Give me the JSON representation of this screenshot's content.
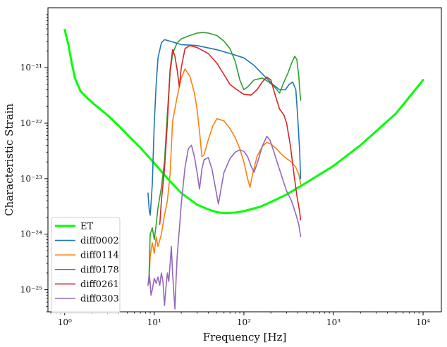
{
  "chart_data": {
    "type": "line",
    "title": "",
    "xlabel": "Frequency [Hz]",
    "ylabel": "Characteristic Strain",
    "xscale": "log",
    "yscale": "log",
    "xlim": [
      0.65,
      16000
    ],
    "ylim": [
      4e-26,
      1.2e-20
    ],
    "grid": false,
    "legend_position": "lower-left",
    "x_ticks": [
      {
        "value": 1,
        "label": "10⁰"
      },
      {
        "value": 10,
        "label": "10¹"
      },
      {
        "value": 100,
        "label": "10²"
      },
      {
        "value": 1000,
        "label": "10³"
      },
      {
        "value": 10000,
        "label": "10⁴"
      }
    ],
    "y_ticks": [
      {
        "value": 1e-25,
        "label": "10⁻²⁵"
      },
      {
        "value": 1e-24,
        "label": "10⁻²⁴"
      },
      {
        "value": 1e-23,
        "label": "10⁻²³"
      },
      {
        "value": 1e-22,
        "label": "10⁻²²"
      },
      {
        "value": 1e-21,
        "label": "10⁻²¹"
      }
    ],
    "series": [
      {
        "name": "ET",
        "color": "#00ff00",
        "width": 3,
        "points": [
          [
            1.0,
            4.8e-21
          ],
          [
            1.1,
            2.6e-21
          ],
          [
            1.2,
            1.2e-21
          ],
          [
            1.3,
            6.5e-22
          ],
          [
            1.5,
            3.8e-22
          ],
          [
            1.8,
            2.8e-22
          ],
          [
            2.2,
            2.1e-22
          ],
          [
            3,
            1.4e-22
          ],
          [
            4,
            9e-23
          ],
          [
            5,
            6.2e-23
          ],
          [
            7,
            3.6e-23
          ],
          [
            10,
            1.9e-23
          ],
          [
            15,
            9e-24
          ],
          [
            20,
            5.5e-24
          ],
          [
            30,
            3.4e-24
          ],
          [
            40,
            2.8e-24
          ],
          [
            50,
            2.5e-24
          ],
          [
            60,
            2.4e-24
          ],
          [
            80,
            2.45e-24
          ],
          [
            100,
            2.6e-24
          ],
          [
            150,
            3.1e-24
          ],
          [
            200,
            3.8e-24
          ],
          [
            300,
            5.2e-24
          ],
          [
            500,
            8.5e-24
          ],
          [
            1000,
            1.7e-23
          ],
          [
            2000,
            4e-23
          ],
          [
            5000,
            1.5e-22
          ],
          [
            10000,
            6e-22
          ]
        ]
      },
      {
        "name": "diff0002",
        "color": "#1f77b4",
        "width": 1.6,
        "points": [
          [
            8.5,
            5.5e-24
          ],
          [
            8.8,
            2.6e-24
          ],
          [
            9.0,
            2.2e-24
          ],
          [
            9.2,
            3.5e-24
          ],
          [
            9.5,
            8e-24
          ],
          [
            10,
            1e-22
          ],
          [
            10.5,
            5e-22
          ],
          [
            11,
            1.5e-21
          ],
          [
            12,
            2.8e-21
          ],
          [
            13,
            3.2e-21
          ],
          [
            15,
            3e-21
          ],
          [
            20,
            2.6e-21
          ],
          [
            30,
            2.5e-21
          ],
          [
            50,
            2.1e-21
          ],
          [
            70,
            1.8e-21
          ],
          [
            100,
            1.5e-21
          ],
          [
            130,
            1.1e-21
          ],
          [
            170,
            7e-22
          ],
          [
            210,
            5e-22
          ],
          [
            250,
            4e-22
          ],
          [
            290,
            4e-22
          ],
          [
            320,
            5e-22
          ],
          [
            350,
            5.5e-22
          ],
          [
            380,
            4e-22
          ],
          [
            400,
            1.2e-22
          ],
          [
            420,
            3e-23
          ],
          [
            430,
            1e-23
          ]
        ]
      },
      {
        "name": "diff0114",
        "color": "#ff7f0e",
        "width": 1.6,
        "points": [
          [
            8.7,
            1.3e-25
          ],
          [
            9,
            4e-25
          ],
          [
            9.5,
            7e-25
          ],
          [
            10,
            4.5e-25
          ],
          [
            10.5,
            9e-25
          ],
          [
            11,
            6e-25
          ],
          [
            12,
            1e-24
          ],
          [
            13,
            2.2e-24
          ],
          [
            14,
            4e-24
          ],
          [
            15,
            1.2e-23
          ],
          [
            16,
            1.1e-22
          ],
          [
            17,
            1.8e-22
          ],
          [
            18,
            3e-22
          ],
          [
            20,
            6.5e-22
          ],
          [
            22,
            9.5e-22
          ],
          [
            25,
            7e-22
          ],
          [
            28,
            3.5e-22
          ],
          [
            30,
            1.8e-22
          ],
          [
            32,
            7e-23
          ],
          [
            34,
            2.5e-23
          ],
          [
            36,
            2.7e-23
          ],
          [
            40,
            5e-23
          ],
          [
            45,
            9e-23
          ],
          [
            50,
            1.2e-22
          ],
          [
            60,
            1.1e-22
          ],
          [
            70,
            8e-23
          ],
          [
            80,
            5.5e-23
          ],
          [
            90,
            3.5e-23
          ],
          [
            100,
            2e-23
          ],
          [
            110,
            1e-23
          ],
          [
            117,
            7e-24
          ],
          [
            125,
            1.2e-23
          ],
          [
            140,
            2.5e-23
          ],
          [
            160,
            3.8e-23
          ],
          [
            180,
            4.5e-23
          ],
          [
            200,
            4.2e-23
          ],
          [
            230,
            3.5e-23
          ],
          [
            260,
            2.8e-23
          ],
          [
            300,
            2.3e-23
          ],
          [
            340,
            2e-23
          ],
          [
            380,
            1.6e-23
          ],
          [
            410,
            1.2e-23
          ],
          [
            430,
            8e-24
          ]
        ]
      },
      {
        "name": "diff0178",
        "color": "#2ca02c",
        "width": 1.6,
        "points": [
          [
            8.7,
            1.4e-25
          ],
          [
            9,
            1e-24
          ],
          [
            9.5,
            1.3e-24
          ],
          [
            10,
            8e-25
          ],
          [
            10.5,
            1.5e-24
          ],
          [
            11,
            3e-24
          ],
          [
            12,
            7e-24
          ],
          [
            13,
            2e-23
          ],
          [
            14,
            1.5e-22
          ],
          [
            15,
            8e-22
          ],
          [
            16,
            1.8e-21
          ],
          [
            18,
            2.8e-21
          ],
          [
            20,
            3.3e-21
          ],
          [
            25,
            3.8e-21
          ],
          [
            30,
            4.2e-21
          ],
          [
            35,
            4.3e-21
          ],
          [
            40,
            4.2e-21
          ],
          [
            50,
            3.8e-21
          ],
          [
            60,
            3e-21
          ],
          [
            70,
            2.2e-21
          ],
          [
            80,
            1.3e-21
          ],
          [
            90,
            6e-22
          ],
          [
            100,
            4e-22
          ],
          [
            110,
            4.5e-22
          ],
          [
            130,
            6e-22
          ],
          [
            160,
            6.5e-22
          ],
          [
            190,
            5.5e-22
          ],
          [
            220,
            4.5e-22
          ],
          [
            250,
            3.5e-22
          ],
          [
            280,
            5.5e-22
          ],
          [
            310,
            8e-22
          ],
          [
            340,
            1.2e-21
          ],
          [
            370,
            1.6e-21
          ],
          [
            390,
            1.4e-21
          ],
          [
            410,
            7e-22
          ],
          [
            420,
            4e-22
          ],
          [
            430,
            2.6e-22
          ]
        ]
      },
      {
        "name": "diff0261",
        "color": "#d62728",
        "width": 1.6,
        "points": [
          [
            11.5,
            1.5e-24
          ],
          [
            12,
            4e-24
          ],
          [
            13,
            1.5e-23
          ],
          [
            14,
            1e-22
          ],
          [
            15,
            9e-22
          ],
          [
            16,
            2.1e-21
          ],
          [
            17,
            1.6e-21
          ],
          [
            18,
            9e-22
          ],
          [
            19,
            4.5e-22
          ],
          [
            20,
            1e-21
          ],
          [
            22,
            2.2e-21
          ],
          [
            25,
            2.5e-21
          ],
          [
            30,
            2.3e-21
          ],
          [
            40,
            1.8e-21
          ],
          [
            50,
            1.2e-21
          ],
          [
            60,
            7.5e-22
          ],
          [
            70,
            5e-22
          ],
          [
            80,
            4.2e-22
          ],
          [
            100,
            3.3e-22
          ],
          [
            120,
            3.2e-22
          ],
          [
            140,
            4e-22
          ],
          [
            160,
            5.5e-22
          ],
          [
            180,
            6.8e-22
          ],
          [
            200,
            6e-22
          ],
          [
            220,
            3.5e-22
          ],
          [
            250,
            1.8e-22
          ],
          [
            280,
            1.4e-22
          ],
          [
            300,
            1e-22
          ],
          [
            330,
            4e-23
          ],
          [
            360,
            1.3e-23
          ],
          [
            390,
            5e-24
          ],
          [
            420,
            2.5e-24
          ],
          [
            430,
            1.8e-24
          ]
        ]
      },
      {
        "name": "diff0303",
        "color": "#9467bd",
        "width": 1.6,
        "points": [
          [
            8.5,
            1.2e-25
          ],
          [
            8.8,
            2e-25
          ],
          [
            9.2,
            8e-26
          ],
          [
            9.5,
            1e-25
          ],
          [
            10,
            1.6e-25
          ],
          [
            10.5,
            1.3e-25
          ],
          [
            11,
            1.7e-25
          ],
          [
            11.5,
            1.2e-25
          ],
          [
            12,
            2e-25
          ],
          [
            12.5,
            1.4e-25
          ],
          [
            13,
            5.2e-26
          ],
          [
            13.5,
            1.1e-25
          ],
          [
            14,
            2e-25
          ],
          [
            14.5,
            1.4e-25
          ],
          [
            15,
            2.8e-25
          ],
          [
            15.5,
            6e-25
          ],
          [
            16,
            2e-25
          ],
          [
            16.5,
            9e-26
          ],
          [
            17,
            4.5e-26
          ],
          [
            17.5,
            1.5e-25
          ],
          [
            18,
            4e-25
          ],
          [
            19,
            1.2e-24
          ],
          [
            20,
            3.5e-24
          ],
          [
            22,
            1.6e-23
          ],
          [
            24,
            3.5e-23
          ],
          [
            26,
            4e-23
          ],
          [
            28,
            2.5e-23
          ],
          [
            30,
            1.3e-23
          ],
          [
            32,
            6.5e-24
          ],
          [
            34,
            1.5e-23
          ],
          [
            36,
            2.2e-23
          ],
          [
            40,
            2.4e-23
          ],
          [
            44,
            1.5e-23
          ],
          [
            48,
            7e-24
          ],
          [
            52,
            3.5e-24
          ],
          [
            56,
            7e-24
          ],
          [
            60,
            1.3e-23
          ],
          [
            70,
            2.3e-23
          ],
          [
            80,
            3e-23
          ],
          [
            90,
            3.3e-23
          ],
          [
            100,
            3.1e-23
          ],
          [
            110,
            2.5e-23
          ],
          [
            120,
            1.7e-23
          ],
          [
            130,
            1.3e-23
          ],
          [
            145,
            2.2e-23
          ],
          [
            160,
            3.8e-23
          ],
          [
            180,
            5.8e-23
          ],
          [
            195,
            5e-23
          ],
          [
            210,
            3.5e-23
          ],
          [
            240,
            1.8e-23
          ],
          [
            270,
            1e-23
          ],
          [
            300,
            6e-24
          ],
          [
            340,
            4e-24
          ],
          [
            380,
            2.3e-24
          ],
          [
            410,
            1.5e-24
          ],
          [
            430,
            9e-25
          ]
        ]
      }
    ]
  }
}
